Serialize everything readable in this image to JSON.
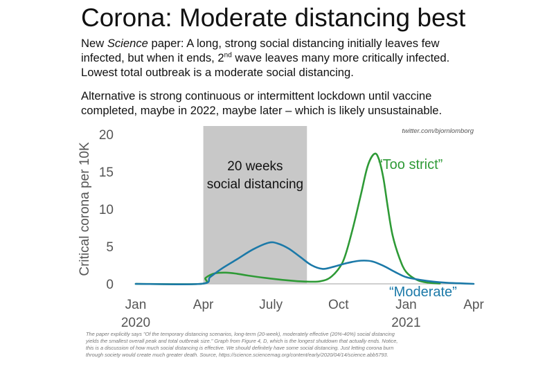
{
  "title": "Corona: Moderate distancing best",
  "paragraph1": {
    "l1_pre": "New ",
    "l1_em": "Science",
    "l1_post": " paper: A long, strong social distancing initially leaves few",
    "l2_pre": "infected, but when it ends, 2",
    "l2_sup": "nd",
    "l2_post": " wave leaves many more critically infected.",
    "l3": "Lowest total outbreak is a moderate social distancing."
  },
  "paragraph2": {
    "l1": "Alternative is strong continuous or intermittent lockdown until vaccine",
    "l2": "completed, maybe in 2022, maybe later – which is likely unsustainable."
  },
  "credit": "twitter.com/bjornlomborg",
  "shade_label": [
    "20 weeks",
    "social distancing"
  ],
  "footnote": [
    "The paper explicitly says \"Of the temporary distancing scenarios, long-term (20-week), moderately effective (20%-40%) social distancing",
    "yields the smallest overall peak and total outbreak size.\" Graph from Figure 4, D, which is the longest shutdown that actually ends. Notice,",
    "this is a discussion of how much social distancing is effective. We should definitely have some social distancing. Just letting corona burn",
    "through society would create much greater death. Source, https://science.sciencemag.org/content/early/2020/04/14/science.abb5793."
  ],
  "colors": {
    "too_strict": "#2e9a36",
    "moderate": "#1b79a8",
    "shade": "#c8c8c8",
    "axis": "#bfbfbf"
  },
  "chart_data": {
    "type": "line",
    "ylabel": "Critical corona per 10K",
    "ylim": [
      0,
      20
    ],
    "yticks": [
      "0",
      "5",
      "10",
      "15",
      "20"
    ],
    "xlim": [
      0,
      15
    ],
    "xticks": [
      {
        "pos": 0,
        "line1": "Jan",
        "line2": "2020"
      },
      {
        "pos": 3,
        "line1": "Apr",
        "line2": ""
      },
      {
        "pos": 6,
        "line1": "July",
        "line2": ""
      },
      {
        "pos": 9,
        "line1": "Oct",
        "line2": ""
      },
      {
        "pos": 12,
        "line1": "Jan",
        "line2": "2021"
      },
      {
        "pos": 15,
        "line1": "Apr",
        "line2": ""
      }
    ],
    "shaded_range": [
      3,
      7.6
    ],
    "series": [
      {
        "name": "“Too strict”",
        "x": [
          0,
          2.9,
          3.1,
          3.5,
          4.0,
          4.5,
          5.0,
          6.0,
          7.0,
          7.6,
          8.2,
          8.7,
          9.2,
          9.6,
          10.0,
          10.3,
          10.6,
          10.8,
          11.0,
          11.2,
          11.4,
          11.7,
          12.0,
          12.5,
          13.0,
          13.5
        ],
        "y": [
          0,
          0,
          0.8,
          1.4,
          1.5,
          1.35,
          1.1,
          0.7,
          0.4,
          0.3,
          0.35,
          1.0,
          3.0,
          7.0,
          12.0,
          15.8,
          17.4,
          16.6,
          14.0,
          10.0,
          6.5,
          3.5,
          1.6,
          0.5,
          0.15,
          0.05
        ]
      },
      {
        "name": "“Moderate”",
        "x": [
          0,
          2.9,
          3.3,
          3.8,
          4.5,
          5.2,
          5.9,
          6.3,
          6.8,
          7.3,
          7.8,
          8.3,
          8.8,
          9.4,
          10.0,
          10.5,
          11.0,
          11.5,
          12.0,
          12.6,
          13.2,
          13.8,
          14.4,
          15.0
        ],
        "y": [
          0,
          0,
          0.9,
          2.0,
          3.3,
          4.6,
          5.5,
          5.4,
          4.7,
          3.6,
          2.5,
          2.0,
          2.3,
          2.8,
          3.1,
          3.0,
          2.4,
          1.6,
          0.9,
          0.55,
          0.3,
          0.15,
          0.07,
          0.0
        ]
      }
    ]
  }
}
